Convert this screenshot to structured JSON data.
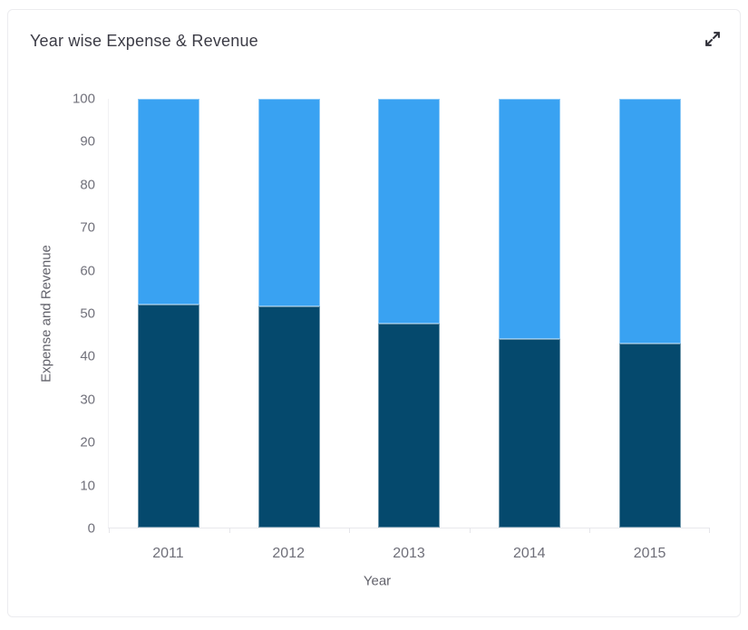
{
  "card": {
    "title": "Year wise Expense & Revenue",
    "expand_button_icon": "expand-diagonal-arrows-icon"
  },
  "colors": {
    "expense": "#05496d",
    "revenue": "#39a2f2",
    "axis_text": "#71717b",
    "title_text": "#3c3c46",
    "axis_line": "#e8e8ec"
  },
  "chart_data": {
    "type": "bar",
    "stacked": true,
    "title": "Year wise Expense & Revenue",
    "categories": [
      "2011",
      "2012",
      "2013",
      "2014",
      "2015"
    ],
    "series": [
      {
        "name": "Expense",
        "color": "#05496d",
        "values": [
          52,
          51.5,
          47.5,
          44,
          43
        ]
      },
      {
        "name": "Revenue",
        "color": "#39a2f2",
        "values": [
          48,
          48.5,
          52.5,
          56,
          57
        ]
      }
    ],
    "xlabel": "Year",
    "ylabel": "Expense and Revenue",
    "ylim": [
      0,
      100
    ],
    "ytick_step": 10,
    "grid": false,
    "legend": "none"
  }
}
